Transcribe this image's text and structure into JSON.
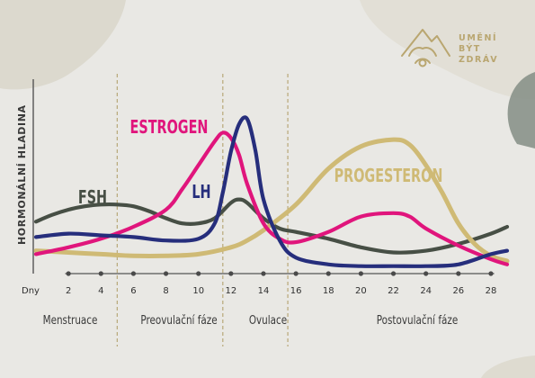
{
  "brand": {
    "lines": [
      "UMĚNÍ",
      "BÝT",
      "ZDRÁV"
    ],
    "color": "#b9a670"
  },
  "chart_data": {
    "type": "line",
    "ylabel": "HORMONÁLNÍ HLADINA",
    "x_unit_label": "Dny",
    "xlim": [
      0,
      30
    ],
    "ylim": [
      0,
      100
    ],
    "x_ticks": [
      2,
      4,
      6,
      8,
      10,
      12,
      14,
      16,
      18,
      20,
      22,
      24,
      26,
      28
    ],
    "phases": [
      {
        "label": "Menstruace",
        "start": 0,
        "end": 5
      },
      {
        "label": "Preovulační fáze",
        "start": 5,
        "end": 11.5
      },
      {
        "label": "Ovulace",
        "start": 11.5,
        "end": 15.5
      },
      {
        "label": "Postovulační fáze",
        "start": 15.5,
        "end": 30
      }
    ],
    "series": [
      {
        "name": "FSH",
        "color": "#474f45",
        "x": [
          0,
          1,
          2,
          3,
          4,
          5,
          6,
          7,
          8,
          9,
          10,
          11,
          12,
          12.5,
          13,
          14,
          15,
          16,
          18,
          20,
          22,
          24,
          26,
          28,
          29
        ],
        "y": [
          23,
          27,
          30,
          32,
          33,
          33,
          32,
          29,
          25,
          22,
          22,
          25,
          34,
          36,
          34,
          25,
          19,
          17,
          13,
          8,
          5,
          6,
          10,
          16,
          20
        ]
      },
      {
        "name": "Estrogen",
        "color": "#e0157c",
        "x": [
          0,
          2,
          4,
          6,
          8,
          9,
          10,
          11,
          11.5,
          12,
          12.5,
          13,
          14,
          15,
          16,
          18,
          20,
          22,
          23,
          24,
          26,
          28,
          29
        ],
        "y": [
          4,
          8,
          13,
          20,
          30,
          42,
          56,
          70,
          75,
          72,
          62,
          45,
          22,
          13,
          11,
          17,
          26,
          28,
          26,
          19,
          9,
          1,
          -2
        ]
      },
      {
        "name": "LH",
        "color": "#262e7c",
        "x": [
          0,
          2,
          4,
          6,
          8,
          10,
          11,
          11.5,
          12,
          12.5,
          13,
          13.5,
          14,
          15,
          16,
          18,
          20,
          22,
          24,
          26,
          28,
          29
        ],
        "y": [
          14,
          16,
          15,
          14,
          12,
          13,
          22,
          40,
          64,
          80,
          83,
          65,
          36,
          12,
          2,
          -2,
          -3,
          -3,
          -3,
          -2,
          4,
          6
        ]
      },
      {
        "name": "Progesteron",
        "color": "#cfba75",
        "x": [
          0,
          2,
          4,
          6,
          8,
          10,
          12,
          13,
          14,
          16,
          18,
          20,
          22,
          23,
          24,
          25,
          26,
          27,
          28,
          29
        ],
        "y": [
          6,
          5,
          4,
          3,
          3,
          4,
          8,
          12,
          18,
          33,
          54,
          67,
          71,
          68,
          56,
          40,
          22,
          10,
          3,
          0
        ]
      }
    ],
    "labels": [
      {
        "series": "FSH",
        "text": "FSH",
        "color": "#474f45"
      },
      {
        "series": "Estrogen",
        "text": "ESTROGEN",
        "color": "#e0157c"
      },
      {
        "series": "LH",
        "text": "LH",
        "color": "#262e7c"
      },
      {
        "series": "Progesteron",
        "text": "PROGESTERON",
        "color": "#cfba75"
      }
    ]
  }
}
